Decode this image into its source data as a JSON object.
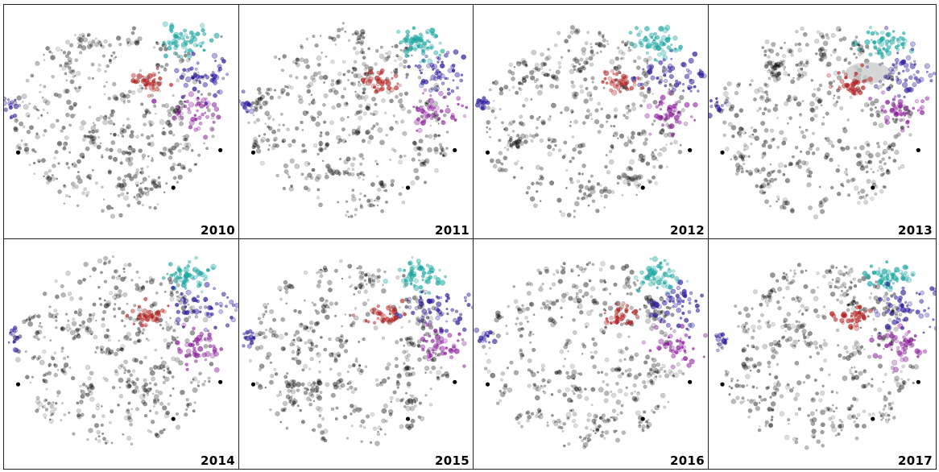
{
  "chart_data": {
    "type": "scatter",
    "grid": false,
    "legend": "none",
    "panels": [
      {
        "label": "2010",
        "highlight": false
      },
      {
        "label": "2011",
        "highlight": false
      },
      {
        "label": "2012",
        "highlight": false
      },
      {
        "label": "2013",
        "highlight": true
      },
      {
        "label": "2014",
        "highlight": false
      },
      {
        "label": "2015",
        "highlight": false
      },
      {
        "label": "2016",
        "highlight": false
      },
      {
        "label": "2017",
        "highlight": false
      }
    ],
    "series_colors": {
      "background": "#000000",
      "cyan": "#1aa6a0",
      "red": "#b22222",
      "blue": "#2a1a9a",
      "purple": "#8a1a9a",
      "highlight_ellipse": "#c8c8c8"
    }
  }
}
